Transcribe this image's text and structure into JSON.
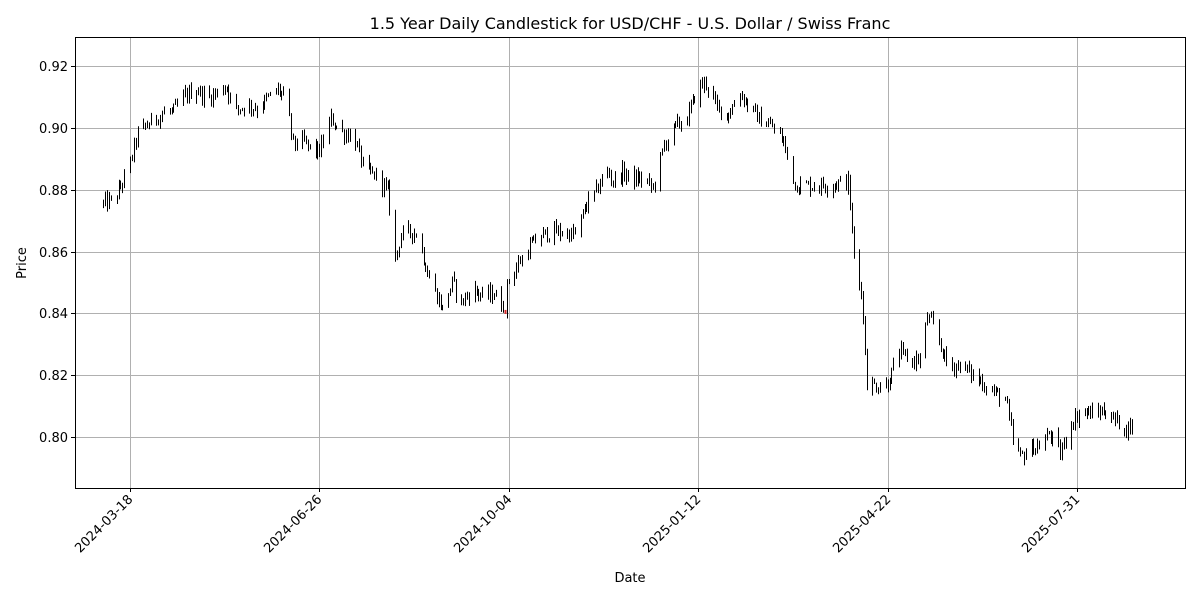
{
  "chart_data": {
    "type": "candlestick",
    "title": "1.5 Year Daily Candlestick for USD/CHF - U.S. Dollar / Swiss Franc",
    "xlabel": "Date",
    "ylabel": "Price",
    "xlim": [
      "2024-02-18",
      "2025-09-26"
    ],
    "ylim": [
      0.7835,
      0.9295
    ],
    "grid": true,
    "x_ticks": [
      "2024-03-18",
      "2024-06-26",
      "2024-10-04",
      "2025-01-12",
      "2025-04-22",
      "2025-07-31"
    ],
    "y_ticks": [
      "0.80",
      "0.82",
      "0.84",
      "0.86",
      "0.88",
      "0.90",
      "0.92"
    ],
    "colors": {
      "up": "#000000",
      "down": "#000000",
      "highlight": "#d62728",
      "grid": "#b0b0b0"
    },
    "series": [
      {
        "keypoints": [
          [
            "2024-03-04",
            0.8755
          ],
          [
            "2024-03-10",
            0.877
          ],
          [
            "2024-03-14",
            0.8825
          ],
          [
            "2024-03-18",
            0.889
          ],
          [
            "2024-03-22",
            0.8985
          ],
          [
            "2024-03-30",
            0.9025
          ],
          [
            "2024-04-05",
            0.905
          ],
          [
            "2024-04-10",
            0.9055
          ],
          [
            "2024-04-16",
            0.9105
          ],
          [
            "2024-04-22",
            0.9125
          ],
          [
            "2024-04-28",
            0.9095
          ],
          [
            "2024-05-05",
            0.9125
          ],
          [
            "2024-05-08",
            0.9135
          ],
          [
            "2024-05-12",
            0.9055
          ],
          [
            "2024-05-18",
            0.9075
          ],
          [
            "2024-05-24",
            0.9065
          ],
          [
            "2024-06-01",
            0.911
          ],
          [
            "2024-06-04",
            0.9125
          ],
          [
            "2024-06-08",
            0.9095
          ],
          [
            "2024-06-12",
            0.895
          ],
          [
            "2024-06-18",
            0.8955
          ],
          [
            "2024-06-22",
            0.893
          ],
          [
            "2024-06-26",
            0.8925
          ],
          [
            "2024-07-02",
            0.903
          ],
          [
            "2024-07-08",
            0.8985
          ],
          [
            "2024-07-14",
            0.8975
          ],
          [
            "2024-07-20",
            0.886
          ],
          [
            "2024-07-26",
            0.8845
          ],
          [
            "2024-08-01",
            0.8795
          ],
          [
            "2024-08-05",
            0.858
          ],
          [
            "2024-08-08",
            0.8655
          ],
          [
            "2024-08-13",
            0.8665
          ],
          [
            "2024-08-17",
            0.8655
          ],
          [
            "2024-08-22",
            0.853
          ],
          [
            "2024-08-26",
            0.847
          ],
          [
            "2024-08-30",
            0.8415
          ],
          [
            "2024-09-04",
            0.85
          ],
          [
            "2024-09-09",
            0.8435
          ],
          [
            "2024-09-15",
            0.848
          ],
          [
            "2024-09-20",
            0.8455
          ],
          [
            "2024-09-26",
            0.8465
          ],
          [
            "2024-09-30",
            0.8425
          ],
          [
            "2024-10-04",
            0.851
          ],
          [
            "2024-10-10",
            0.857
          ],
          [
            "2024-10-16",
            0.8625
          ],
          [
            "2024-10-22",
            0.8655
          ],
          [
            "2024-10-28",
            0.8665
          ],
          [
            "2024-11-03",
            0.866
          ],
          [
            "2024-11-08",
            0.8655
          ],
          [
            "2024-11-14",
            0.8755
          ],
          [
            "2024-11-19",
            0.8795
          ],
          [
            "2024-11-24",
            0.8865
          ],
          [
            "2024-11-28",
            0.883
          ],
          [
            "2024-12-03",
            0.8855
          ],
          [
            "2024-12-09",
            0.8835
          ],
          [
            "2024-12-14",
            0.8835
          ],
          [
            "2024-12-19",
            0.8805
          ],
          [
            "2024-12-25",
            0.8945
          ],
          [
            "2024-12-31",
            0.9005
          ],
          [
            "2025-01-06",
            0.9035
          ],
          [
            "2025-01-12",
            0.9135
          ],
          [
            "2025-01-16",
            0.9145
          ],
          [
            "2025-01-22",
            0.9065
          ],
          [
            "2025-01-28",
            0.9045
          ],
          [
            "2025-02-03",
            0.9115
          ],
          [
            "2025-02-08",
            0.9065
          ],
          [
            "2025-02-14",
            0.9025
          ],
          [
            "2025-02-20",
            0.9005
          ],
          [
            "2025-02-26",
            0.8955
          ],
          [
            "2025-03-04",
            0.8815
          ],
          [
            "2025-03-10",
            0.8815
          ],
          [
            "2025-03-16",
            0.8815
          ],
          [
            "2025-03-22",
            0.8815
          ],
          [
            "2025-03-28",
            0.8825
          ],
          [
            "2025-04-01",
            0.8825
          ],
          [
            "2025-04-05",
            0.8505
          ],
          [
            "2025-04-08",
            0.8485
          ],
          [
            "2025-04-11",
            0.8175
          ],
          [
            "2025-04-16",
            0.8165
          ],
          [
            "2025-04-22",
            0.8175
          ],
          [
            "2025-04-28",
            0.8275
          ],
          [
            "2025-05-04",
            0.8245
          ],
          [
            "2025-05-10",
            0.8255
          ],
          [
            "2025-05-13",
            0.8395
          ],
          [
            "2025-05-18",
            0.8325
          ],
          [
            "2025-05-24",
            0.8225
          ],
          [
            "2025-05-30",
            0.8235
          ],
          [
            "2025-06-05",
            0.8205
          ],
          [
            "2025-06-11",
            0.8175
          ],
          [
            "2025-06-17",
            0.8145
          ],
          [
            "2025-06-23",
            0.8125
          ],
          [
            "2025-06-27",
            0.7985
          ],
          [
            "2025-07-01",
            0.7935
          ],
          [
            "2025-07-07",
            0.7965
          ],
          [
            "2025-07-13",
            0.7975
          ],
          [
            "2025-07-16",
            0.8015
          ],
          [
            "2025-07-22",
            0.7945
          ],
          [
            "2025-07-28",
            0.8045
          ],
          [
            "2025-08-02",
            0.8085
          ],
          [
            "2025-08-08",
            0.8075
          ],
          [
            "2025-08-14",
            0.8085
          ],
          [
            "2025-08-20",
            0.8055
          ],
          [
            "2025-08-26",
            0.8025
          ],
          [
            "2025-08-30",
            0.8045
          ]
        ],
        "highlight": {
          "date": "2024-10-02",
          "price": 0.8405
        }
      }
    ]
  }
}
